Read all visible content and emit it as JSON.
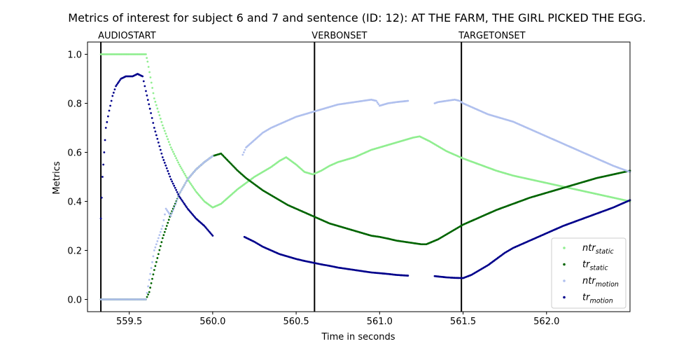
{
  "chart_data": {
    "type": "scatter",
    "title": "Metrics of interest for subject 6 and 7 and sentence (ID: 12): AT THE FARM, THE GIRL PICKED THE EGG.",
    "xlabel": "Time in seconds",
    "ylabel": "Metrics",
    "xlim": [
      559.25,
      562.5
    ],
    "ylim": [
      -0.05,
      1.05
    ],
    "xticks": [
      559.5,
      560.0,
      560.5,
      561.0,
      561.5,
      562.0
    ],
    "yticks": [
      0.0,
      0.2,
      0.4,
      0.6,
      0.8,
      1.0
    ],
    "grid": false,
    "legend_position": "lower-right",
    "events": [
      {
        "label": "AUDIOSTART",
        "x": 559.33
      },
      {
        "label": "VERBONSET",
        "x": 560.61
      },
      {
        "label": "TARGETONSET",
        "x": 561.49
      }
    ],
    "series": [
      {
        "name": "ntr_static",
        "legend_base": "ntr",
        "legend_sub": "static",
        "color": "#90ee90",
        "x": [
          559.33,
          559.4,
          559.5,
          559.55,
          559.6,
          559.61,
          559.65,
          559.7,
          559.75,
          559.8,
          559.85,
          559.9,
          559.95,
          560.0,
          560.05,
          560.1,
          560.15,
          560.2,
          560.25,
          560.3,
          560.35,
          560.4,
          560.44,
          560.5,
          560.55,
          560.6,
          560.65,
          560.7,
          560.75,
          560.8,
          560.85,
          560.9,
          560.95,
          561.0,
          561.05,
          561.1,
          561.15,
          561.2,
          561.24,
          561.3,
          561.35,
          561.4,
          561.45,
          561.5,
          561.6,
          561.7,
          561.8,
          561.9,
          562.0,
          562.1,
          562.2,
          562.3,
          562.4,
          562.5
        ],
        "y": [
          1.0,
          1.0,
          1.0,
          1.0,
          1.0,
          0.97,
          0.82,
          0.71,
          0.62,
          0.55,
          0.49,
          0.44,
          0.4,
          0.375,
          0.39,
          0.42,
          0.45,
          0.475,
          0.5,
          0.52,
          0.54,
          0.565,
          0.58,
          0.55,
          0.52,
          0.51,
          0.525,
          0.545,
          0.56,
          0.57,
          0.58,
          0.595,
          0.61,
          0.62,
          0.63,
          0.64,
          0.65,
          0.66,
          0.665,
          0.645,
          0.625,
          0.605,
          0.59,
          0.575,
          0.55,
          0.525,
          0.505,
          0.49,
          0.475,
          0.46,
          0.445,
          0.43,
          0.415,
          0.4
        ]
      },
      {
        "name": "tr_static",
        "legend_base": "tr",
        "legend_sub": "static",
        "color": "#006400",
        "x": [
          559.33,
          559.4,
          559.5,
          559.55,
          559.6,
          559.62,
          559.65,
          559.7,
          559.75,
          559.8,
          559.85,
          559.9,
          559.95,
          560.0,
          560.05,
          560.1,
          560.15,
          560.2,
          560.25,
          560.3,
          560.35,
          560.4,
          560.45,
          560.5,
          560.55,
          560.6,
          560.65,
          560.7,
          560.75,
          560.8,
          560.85,
          560.9,
          560.95,
          561.0,
          561.05,
          561.1,
          561.15,
          561.2,
          561.25,
          561.28,
          561.35,
          561.4,
          561.45,
          561.5,
          561.6,
          561.7,
          561.8,
          561.9,
          562.0,
          562.1,
          562.2,
          562.3,
          562.4,
          562.5
        ],
        "y": [
          0.0,
          0.0,
          0.0,
          0.0,
          0.0,
          0.03,
          0.12,
          0.25,
          0.35,
          0.43,
          0.49,
          0.53,
          0.56,
          0.585,
          0.595,
          0.56,
          0.525,
          0.495,
          0.47,
          0.445,
          0.425,
          0.405,
          0.385,
          0.37,
          0.355,
          0.34,
          0.325,
          0.31,
          0.3,
          0.29,
          0.28,
          0.27,
          0.26,
          0.255,
          0.248,
          0.24,
          0.235,
          0.23,
          0.225,
          0.225,
          0.245,
          0.265,
          0.285,
          0.305,
          0.335,
          0.365,
          0.39,
          0.415,
          0.435,
          0.455,
          0.475,
          0.495,
          0.51,
          0.525
        ]
      },
      {
        "name": "ntr_motion",
        "legend_base": "ntr",
        "legend_sub": "motion",
        "color": "#b0c0ee",
        "x": [
          559.33,
          559.4,
          559.5,
          559.58,
          559.6,
          559.62,
          559.65,
          559.7,
          559.72,
          559.75,
          559.8,
          559.85,
          559.9,
          559.95,
          560.0,
          560.18,
          560.2,
          560.25,
          560.3,
          560.35,
          560.4,
          560.45,
          560.5,
          560.55,
          560.6,
          560.65,
          560.7,
          560.75,
          560.8,
          560.85,
          560.9,
          560.95,
          560.98,
          561.0,
          561.05,
          561.1,
          561.17,
          561.33,
          561.35,
          561.4,
          561.45,
          561.48,
          561.5,
          561.55,
          561.6,
          561.65,
          561.75,
          561.8,
          561.85,
          561.9,
          561.95,
          562.0,
          562.1,
          562.2,
          562.3,
          562.4,
          562.5
        ],
        "y": [
          0.0,
          0.0,
          0.0,
          0.0,
          0.0,
          0.08,
          0.2,
          0.3,
          0.37,
          0.34,
          0.43,
          0.49,
          0.53,
          0.56,
          0.585,
          0.59,
          0.62,
          0.65,
          0.68,
          0.7,
          0.715,
          0.73,
          0.745,
          0.755,
          0.765,
          0.775,
          0.785,
          0.795,
          0.8,
          0.805,
          0.81,
          0.815,
          0.81,
          0.79,
          0.8,
          0.805,
          0.81,
          0.8,
          0.805,
          0.81,
          0.815,
          0.81,
          0.8,
          0.785,
          0.77,
          0.755,
          0.735,
          0.725,
          0.71,
          0.695,
          0.68,
          0.665,
          0.635,
          0.605,
          0.575,
          0.545,
          0.52
        ]
      },
      {
        "name": "tr_motion",
        "legend_base": "tr",
        "legend_sub": "motion",
        "color": "#00008b",
        "x": [
          559.33,
          559.34,
          559.35,
          559.36,
          559.38,
          559.4,
          559.42,
          559.45,
          559.48,
          559.52,
          559.55,
          559.58,
          559.6,
          559.63,
          559.65,
          559.7,
          559.75,
          559.8,
          559.85,
          559.9,
          559.95,
          560.0,
          560.19,
          560.25,
          560.3,
          560.35,
          560.4,
          560.45,
          560.5,
          560.55,
          560.6,
          560.65,
          560.7,
          560.75,
          560.8,
          560.85,
          560.9,
          560.95,
          561.0,
          561.05,
          561.1,
          561.17,
          561.33,
          561.4,
          561.45,
          561.5,
          561.55,
          561.6,
          561.65,
          561.75,
          561.8,
          561.85,
          561.9,
          561.95,
          562.0,
          562.1,
          562.2,
          562.3,
          562.4,
          562.5
        ],
        "y": [
          0.33,
          0.5,
          0.6,
          0.7,
          0.77,
          0.83,
          0.87,
          0.9,
          0.91,
          0.91,
          0.92,
          0.91,
          0.85,
          0.76,
          0.7,
          0.58,
          0.49,
          0.42,
          0.37,
          0.33,
          0.3,
          0.26,
          0.255,
          0.235,
          0.215,
          0.2,
          0.185,
          0.175,
          0.165,
          0.157,
          0.15,
          0.143,
          0.137,
          0.13,
          0.125,
          0.12,
          0.115,
          0.11,
          0.107,
          0.104,
          0.1,
          0.097,
          0.095,
          0.09,
          0.088,
          0.087,
          0.1,
          0.12,
          0.14,
          0.19,
          0.21,
          0.225,
          0.24,
          0.255,
          0.27,
          0.3,
          0.325,
          0.35,
          0.375,
          0.405
        ]
      }
    ]
  }
}
